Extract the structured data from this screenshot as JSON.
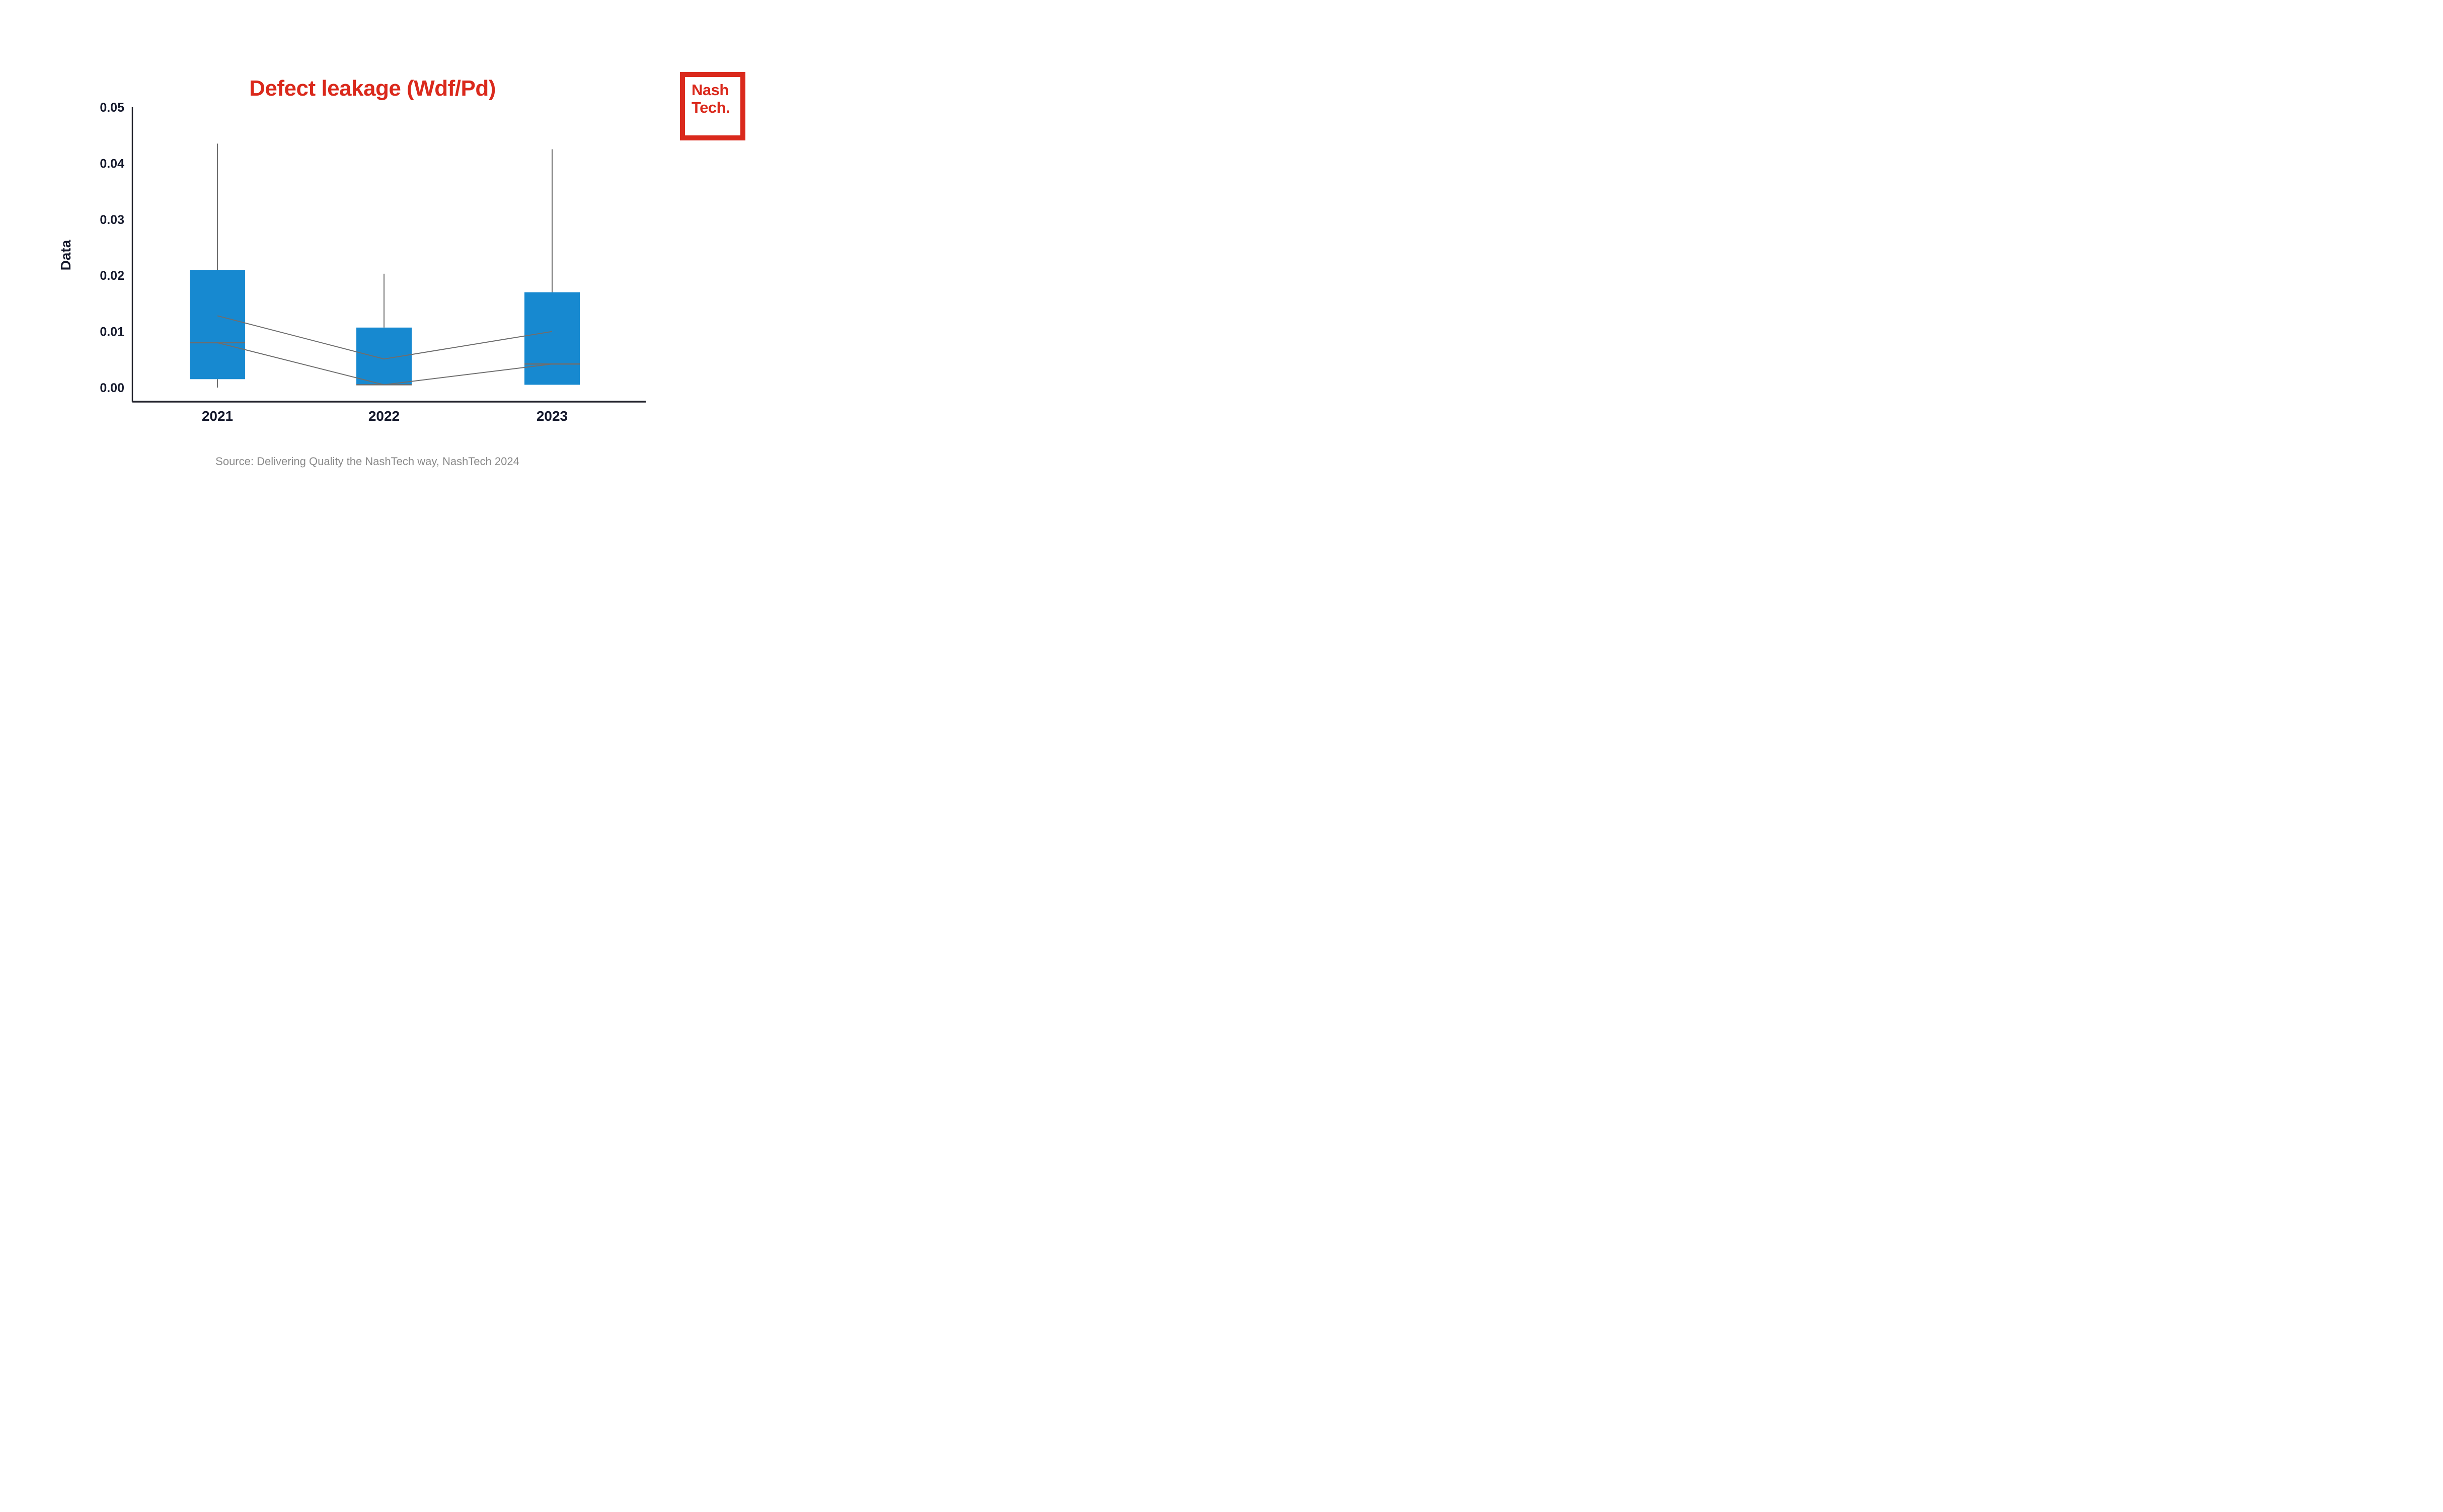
{
  "header": {
    "title": "Defect leakage (Wdf/Pd)",
    "title_color": "#da291c"
  },
  "logo": {
    "line1": "Nash",
    "line2": "Tech.",
    "color": "#da291c"
  },
  "source": {
    "text": "Source: Delivering Quality the NashTech way, NashTech 2024",
    "color": "#8a8a8a"
  },
  "colors": {
    "box_fill": "#1789d0",
    "line_gray": "#6e6e6e",
    "spine_dark": "#24252e",
    "text_dark": "#14182b"
  },
  "chart_data": {
    "type": "box",
    "title": "Defect leakage (Wdf/Pd)",
    "xlabel": "",
    "ylabel": "Data",
    "categories": [
      "2021",
      "2022",
      "2023"
    ],
    "ylim": [
      0,
      0.05
    ],
    "yticks": [
      {
        "value": 0.0,
        "label": "0.00"
      },
      {
        "value": 0.01,
        "label": "0.01"
      },
      {
        "value": 0.02,
        "label": "0.02"
      },
      {
        "value": 0.03,
        "label": "0.03"
      },
      {
        "value": 0.04,
        "label": "0.04"
      },
      {
        "value": 0.05,
        "label": "0.05"
      }
    ],
    "grid": false,
    "legend": false,
    "series": [
      {
        "category": "2021",
        "whisker_low": 0.0,
        "q1": 0.0015,
        "median": 0.008,
        "mean": 0.0128,
        "q3": 0.021,
        "whisker_high": 0.0435
      },
      {
        "category": "2022",
        "whisker_low": 0.0005,
        "q1": 0.0005,
        "median": 0.0005,
        "mean": 0.0051,
        "q3": 0.0107,
        "whisker_high": 0.0203
      },
      {
        "category": "2023",
        "whisker_low": 0.0005,
        "q1": 0.0005,
        "median": 0.0042,
        "mean": 0.01,
        "q3": 0.017,
        "whisker_high": 0.0425
      }
    ],
    "connectors": {
      "mean_polyline": true,
      "median_polyline": true
    }
  }
}
